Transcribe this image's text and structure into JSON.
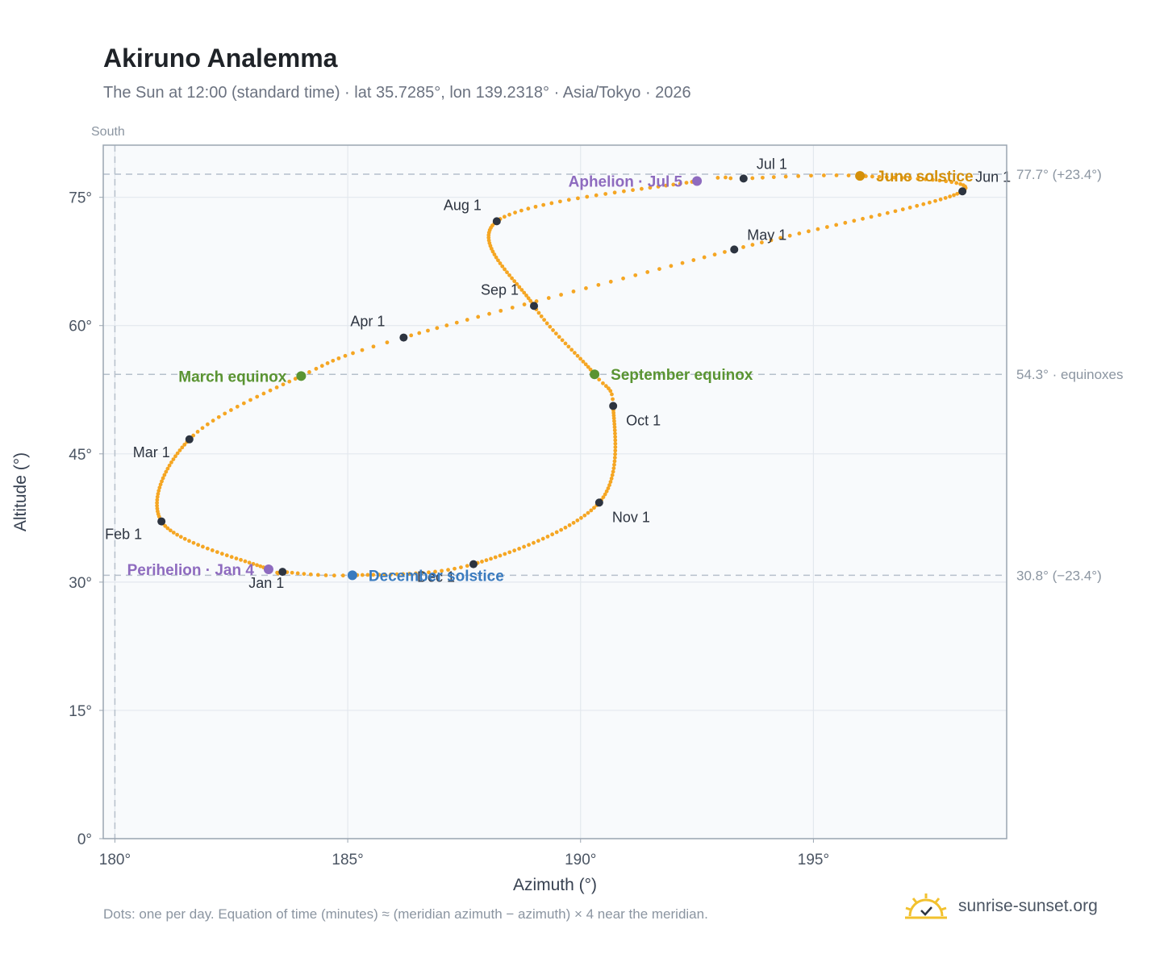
{
  "header": {
    "title": "Akiruno Analemma",
    "subtitle": "The Sun at 12:00 (standard time) · lat 35.7285°, lon 139.2318° · Asia/Tokyo · 2026"
  },
  "footer": {
    "note": "Dots: one per day. Equation of time (minutes) ≈ (meridian azimuth − azimuth) × 4 near the meridian.",
    "brand": "sunrise-sunset.org"
  },
  "colors": {
    "curve": "#f5a623",
    "month_marker": "#2d3440",
    "solstice_june": "#d4900a",
    "solstice_december": "#3a7bbf",
    "equinox": "#5a9432",
    "apsis": "#8e6bbf",
    "grid": "#e3e8ee",
    "plot_bg": "#f8fafc",
    "axis": "#9aa5b1",
    "brand_icon": "#f2c12e"
  },
  "chart_data": {
    "type": "scatter",
    "xlabel": "Azimuth (°)",
    "ylabel": "Altitude (°)",
    "xlim": [
      179.75,
      199.15
    ],
    "ylim": [
      0,
      81.1
    ],
    "x_ticks": [
      {
        "v": 180,
        "label": "180°"
      },
      {
        "v": 185,
        "label": "185°"
      },
      {
        "v": 190,
        "label": "190°"
      },
      {
        "v": 195,
        "label": "195°"
      }
    ],
    "y_ticks": [
      {
        "v": 0,
        "label": "0°"
      },
      {
        "v": 15,
        "label": "15°"
      },
      {
        "v": 30,
        "label": "30°"
      },
      {
        "v": 45,
        "label": "45°"
      },
      {
        "v": 60,
        "label": "60°"
      },
      {
        "v": 75,
        "label": "75°"
      }
    ],
    "grid": true,
    "meridian": {
      "azimuth": 180,
      "label": "South"
    },
    "reference_lines": [
      {
        "altitude": 77.7,
        "label": "77.7° (+23.4°)"
      },
      {
        "altitude": 54.3,
        "label": "54.3° · equinoxes"
      },
      {
        "altitude": 30.8,
        "label": "30.8° (−23.4°)"
      }
    ],
    "path_anchors": [
      {
        "day": 1,
        "az": 183.6,
        "alt": 31.2
      },
      {
        "day": 4,
        "az": 183.3,
        "alt": 31.5
      },
      {
        "day": 32,
        "az": 181.0,
        "alt": 37.1
      },
      {
        "day": 60,
        "az": 181.6,
        "alt": 46.7
      },
      {
        "day": 79,
        "az": 184.0,
        "alt": 54.1
      },
      {
        "day": 91,
        "az": 186.2,
        "alt": 58.6
      },
      {
        "day": 121,
        "az": 193.3,
        "alt": 68.9
      },
      {
        "day": 152,
        "az": 198.2,
        "alt": 75.7
      },
      {
        "day": 172,
        "az": 196.0,
        "alt": 77.5
      },
      {
        "day": 182,
        "az": 193.5,
        "alt": 77.2
      },
      {
        "day": 186,
        "az": 192.5,
        "alt": 76.9
      },
      {
        "day": 213,
        "az": 188.2,
        "alt": 72.2
      },
      {
        "day": 244,
        "az": 189.0,
        "alt": 62.3
      },
      {
        "day": 266,
        "az": 190.3,
        "alt": 54.3
      },
      {
        "day": 274,
        "az": 190.7,
        "alt": 50.6
      },
      {
        "day": 305,
        "az": 190.4,
        "alt": 39.3
      },
      {
        "day": 335,
        "az": 187.7,
        "alt": 32.1
      },
      {
        "day": 355,
        "az": 185.1,
        "alt": 30.8
      },
      {
        "day": 365,
        "az": 183.6,
        "alt": 31.2
      }
    ],
    "month_markers": [
      {
        "label": "Jan 1",
        "az": 183.6,
        "alt": 31.2,
        "pos": "below"
      },
      {
        "label": "Feb 1",
        "az": 181.0,
        "alt": 37.1,
        "pos": "below-left"
      },
      {
        "label": "Mar 1",
        "az": 181.6,
        "alt": 46.7,
        "pos": "below-left"
      },
      {
        "label": "Apr 1",
        "az": 186.2,
        "alt": 58.6,
        "pos": "upper-left"
      },
      {
        "label": "May 1",
        "az": 193.3,
        "alt": 68.9,
        "pos": "upper-right"
      },
      {
        "label": "Jun 1",
        "az": 198.2,
        "alt": 75.7,
        "pos": "upper-right"
      },
      {
        "label": "Jul 1",
        "az": 193.5,
        "alt": 77.2,
        "pos": "upper-right"
      },
      {
        "label": "Aug 1",
        "az": 188.2,
        "alt": 72.2,
        "pos": "upper-left"
      },
      {
        "label": "Sep 1",
        "az": 189.0,
        "alt": 62.3,
        "pos": "upper-left"
      },
      {
        "label": "Oct 1",
        "az": 190.7,
        "alt": 50.6,
        "pos": "below-right"
      },
      {
        "label": "Nov 1",
        "az": 190.4,
        "alt": 39.3,
        "pos": "below-right"
      },
      {
        "label": "Dec 1",
        "az": 187.7,
        "alt": 32.1,
        "pos": "below-left"
      }
    ],
    "events": [
      {
        "label": "June solstice",
        "az": 196.0,
        "alt": 77.5,
        "kind": "solstice_june",
        "side": "right"
      },
      {
        "label": "December solstice",
        "az": 185.1,
        "alt": 30.8,
        "kind": "solstice_december",
        "side": "right"
      },
      {
        "label": "March equinox",
        "az": 184.0,
        "alt": 54.1,
        "kind": "equinox",
        "side": "left"
      },
      {
        "label": "September equinox",
        "az": 190.3,
        "alt": 54.3,
        "kind": "equinox",
        "side": "right"
      },
      {
        "label": "Perihelion · Jan 4",
        "az": 183.3,
        "alt": 31.5,
        "kind": "apsis",
        "side": "left"
      },
      {
        "label": "Aphelion · Jul 5",
        "az": 192.5,
        "alt": 76.9,
        "kind": "apsis",
        "side": "left"
      }
    ]
  }
}
